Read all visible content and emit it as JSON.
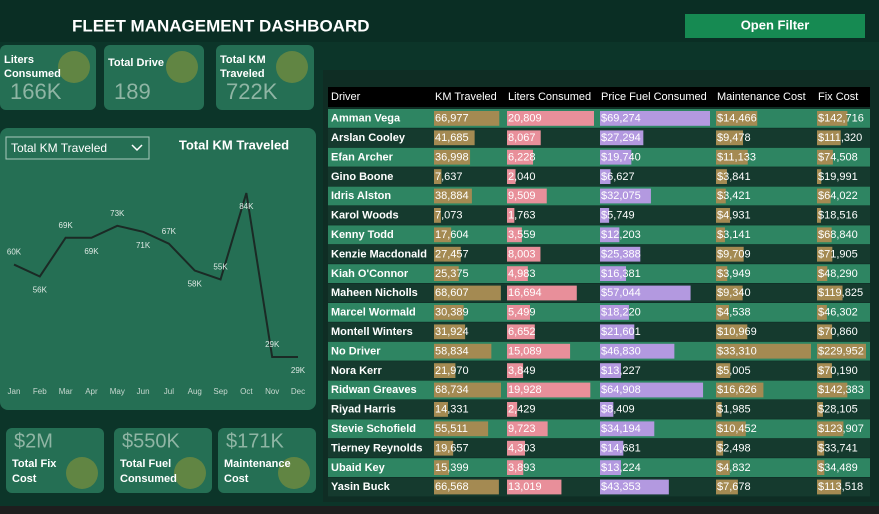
{
  "header": {
    "title": "FLEET MANAGEMENT DASHBOARD",
    "button": "Open Filter"
  },
  "kpis": [
    {
      "label": "Liters Consumed",
      "value": "166K"
    },
    {
      "label": "Total Drive",
      "value": "189"
    },
    {
      "label": "Total KM Traveled",
      "value": "722K"
    }
  ],
  "bottom_kpis": [
    {
      "label": "Total Fix Cost",
      "value": "$2M"
    },
    {
      "label": "Total Fuel Consumed",
      "value": "$550K"
    },
    {
      "label": "Maintenance Cost",
      "value": "$171K"
    }
  ],
  "dropdown": "Total KM Traveled",
  "chart_data": {
    "type": "line",
    "title": "Total KM Traveled",
    "categories": [
      "Jan",
      "Feb",
      "Mar",
      "Apr",
      "May",
      "Jun",
      "Jul",
      "Aug",
      "Sep",
      "Oct",
      "Nov",
      "Dec"
    ],
    "values": [
      60000,
      56000,
      69000,
      69000,
      73000,
      71000,
      67000,
      58000,
      55000,
      84000,
      29000,
      29000
    ],
    "value_labels": [
      "60K",
      "56K",
      "69K",
      "69K",
      "73K",
      "71K",
      "67K",
      "58K",
      "55K",
      "84K",
      "29K",
      "29K"
    ],
    "color": "#1b2a25"
  },
  "table": {
    "columns": [
      "Driver",
      "KM Traveled",
      "Liters Consumed",
      "Price Fuel Consumed",
      "Maintenance Cost",
      "Fix Cost"
    ],
    "rows": [
      [
        "Amman Vega",
        "66,977",
        "20,809",
        "$69,274",
        "$14,466",
        "$142,716"
      ],
      [
        "Arslan Cooley",
        "41,685",
        "8,067",
        "$27,294",
        "$9,478",
        "$111,320"
      ],
      [
        "Efan Archer",
        "36,998",
        "6,228",
        "$19,740",
        "$11,133",
        "$74,508"
      ],
      [
        "Gino Boone",
        "7,637",
        "2,040",
        "$6,627",
        "$3,841",
        "$19,991"
      ],
      [
        "Idris Alston",
        "38,884",
        "9,509",
        "$32,075",
        "$3,421",
        "$64,022"
      ],
      [
        "Karol Woods",
        "7,073",
        "1,763",
        "$5,749",
        "$4,931",
        "$18,516"
      ],
      [
        "Kenny Todd",
        "17,604",
        "3,559",
        "$12,203",
        "$3,141",
        "$68,840"
      ],
      [
        "Kenzie Macdonald",
        "27,457",
        "8,003",
        "$25,388",
        "$9,709",
        "$71,905"
      ],
      [
        "Kiah O'Connor",
        "25,375",
        "4,983",
        "$16,381",
        "$3,949",
        "$48,290"
      ],
      [
        "Maheen Nicholls",
        "68,607",
        "16,694",
        "$57,044",
        "$9,340",
        "$119,825"
      ],
      [
        "Marcel Wormald",
        "30,389",
        "5,499",
        "$18,220",
        "$4,538",
        "$46,302"
      ],
      [
        "Montell Winters",
        "31,924",
        "6,652",
        "$21,601",
        "$10,969",
        "$70,860"
      ],
      [
        "No Driver",
        "58,834",
        "15,089",
        "$46,830",
        "$33,310",
        "$229,952"
      ],
      [
        "Nora Kerr",
        "21,970",
        "3,849",
        "$13,227",
        "$5,005",
        "$70,190"
      ],
      [
        "Ridwan Greaves",
        "68,734",
        "19,928",
        "$64,908",
        "$16,626",
        "$142,383"
      ],
      [
        "Riyad Harris",
        "14,331",
        "2,429",
        "$8,409",
        "$1,985",
        "$28,105"
      ],
      [
        "Stevie Schofield",
        "55,511",
        "9,723",
        "$34,194",
        "$10,452",
        "$123,907"
      ],
      [
        "Tierney Reynolds",
        "19,657",
        "4,303",
        "$14,681",
        "$2,498",
        "$33,741"
      ],
      [
        "Ubaid Key",
        "15,399",
        "3,893",
        "$13,224",
        "$4,832",
        "$34,489"
      ],
      [
        "Yasin Buck",
        "66,568",
        "13,019",
        "$43,353",
        "$7,678",
        "$113,518"
      ]
    ]
  }
}
